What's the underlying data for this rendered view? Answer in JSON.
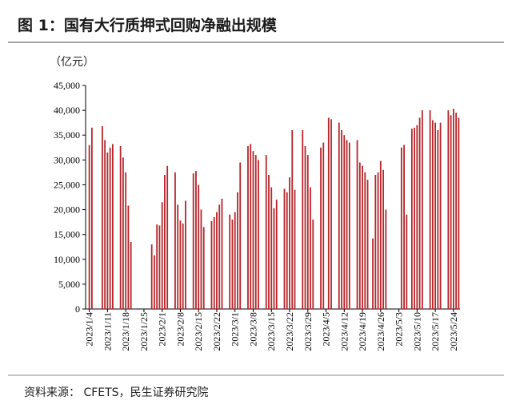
{
  "header": {
    "title": "图 1：国有大行质押式回购净融出规模"
  },
  "chart_data": {
    "type": "bar",
    "y_label": "（亿元）",
    "color": "#b5262b",
    "ylim": [
      0,
      45000
    ],
    "yticks": [
      0,
      {
        "value": 5000,
        "label": "5,000"
      },
      {
        "value": 10000,
        "label": "10,000"
      },
      {
        "value": 15000,
        "label": "15,000"
      },
      {
        "value": 20000,
        "label": "20,000"
      },
      {
        "value": 25000,
        "label": "25,000"
      },
      {
        "value": 30000,
        "label": "30,000"
      },
      {
        "value": 35000,
        "label": "35,000"
      },
      {
        "value": 40000,
        "label": "40,000"
      },
      {
        "value": 45000,
        "label": "45,000"
      }
    ],
    "categories": [
      "2023/1/4",
      null,
      null,
      null,
      null,
      null,
      null,
      "2023/1/11",
      null,
      null,
      null,
      null,
      null,
      null,
      "2023/1/18",
      null,
      null,
      null,
      null,
      null,
      null,
      "2023/1/25",
      null,
      null,
      null,
      null,
      null,
      null,
      "2023/2/1",
      null,
      null,
      null,
      null,
      null,
      null,
      "2023/2/8",
      null,
      null,
      null,
      null,
      null,
      null,
      "2023/2/15",
      null,
      null,
      null,
      null,
      null,
      null,
      "2023/2/22",
      null,
      null,
      null,
      null,
      null,
      null,
      "2023/3/1",
      null,
      null,
      null,
      null,
      null,
      null,
      "2023/3/8",
      null,
      null,
      null,
      null,
      null,
      null,
      "2023/3/15",
      null,
      null,
      null,
      null,
      null,
      null,
      "2023/3/22",
      null,
      null,
      null,
      null,
      null,
      null,
      "2023/3/29",
      null,
      null,
      null,
      null,
      null,
      null,
      "2023/4/5",
      null,
      null,
      null,
      null,
      null,
      null,
      "2023/4/12",
      null,
      null,
      null,
      null,
      null,
      null,
      "2023/4/19",
      null,
      null,
      null,
      null,
      null,
      null,
      "2023/4/26",
      null,
      null,
      null,
      null,
      null,
      null,
      "2023/5/3",
      null,
      null,
      null,
      null,
      null,
      null,
      "2023/5/10",
      null,
      null,
      null,
      null,
      null,
      null,
      "2023/5/17",
      null,
      null,
      null,
      null,
      null,
      null,
      "2023/5/24",
      null,
      null
    ],
    "values": [
      33000,
      36500,
      null,
      null,
      null,
      36800,
      34000,
      31500,
      32500,
      33200,
      null,
      null,
      32800,
      30500,
      27500,
      20800,
      13500,
      null,
      null,
      null,
      null,
      null,
      null,
      null,
      13000,
      10800,
      17000,
      16800,
      21500,
      27000,
      28800,
      null,
      null,
      27500,
      21000,
      17800,
      17200,
      21800,
      null,
      null,
      27300,
      27800,
      25000,
      20000,
      16500,
      null,
      null,
      17700,
      18500,
      19500,
      21000,
      22200,
      null,
      null,
      19000,
      18000,
      19500,
      23500,
      29500,
      null,
      null,
      32800,
      33200,
      31800,
      31000,
      30000,
      null,
      null,
      31000,
      27000,
      24500,
      20300,
      22000,
      null,
      null,
      24200,
      23500,
      26500,
      36000,
      24000,
      null,
      null,
      36000,
      32800,
      31000,
      24500,
      18000,
      null,
      null,
      32500,
      33500,
      null,
      38500,
      38200,
      null,
      null,
      37500,
      36000,
      35000,
      34000,
      33500,
      null,
      null,
      34000,
      29500,
      28800,
      27500,
      26000,
      null,
      14200,
      27000,
      27500,
      29800,
      28000,
      20000,
      null,
      null,
      null,
      null,
      null,
      32500,
      33000,
      19000,
      null,
      36300,
      36500,
      37000,
      38500,
      40000,
      null,
      null,
      40000,
      38000,
      37500,
      36000,
      37500,
      null,
      null,
      40000,
      39000,
      40300,
      39500,
      38500
    ]
  },
  "footer": {
    "source": "资料来源：  CFETS，民生证券研究院"
  }
}
